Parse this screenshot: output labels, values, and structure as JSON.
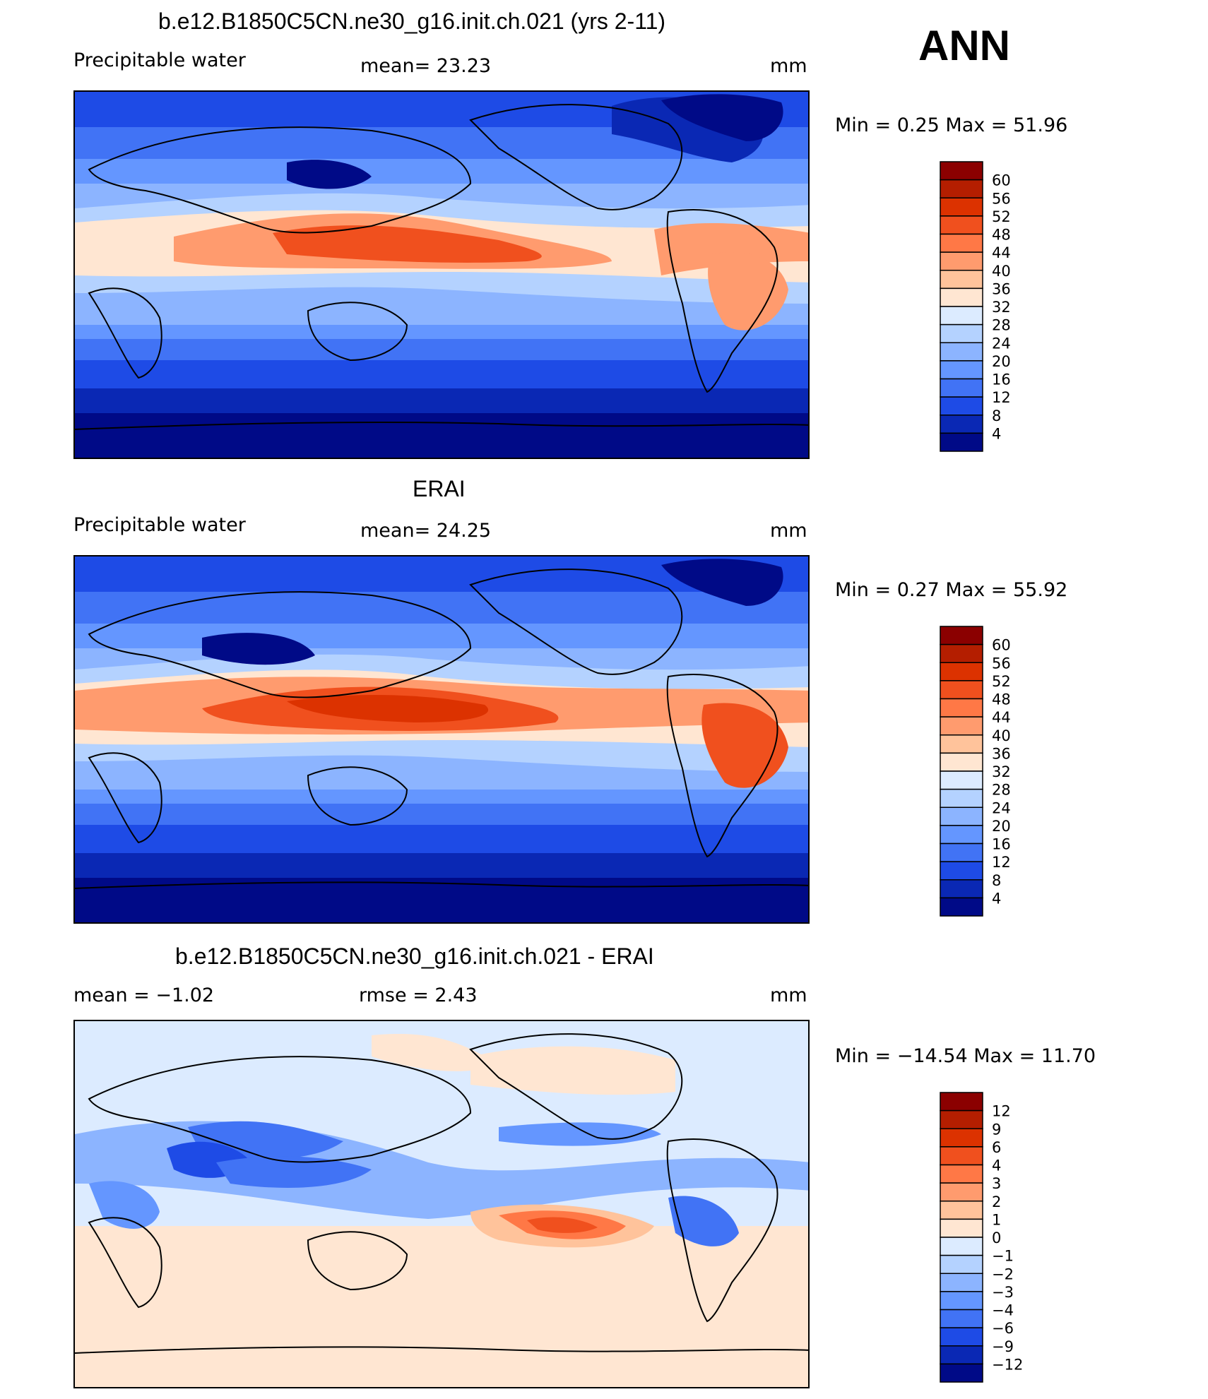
{
  "season": "ANN",
  "panels": [
    {
      "title": "b.e12.B1850C5CN.ne30_g16.init.ch.021 (yrs 2-11)",
      "left_label": "Precipitable  water",
      "center_label": "mean=   23.23",
      "units": "mm",
      "minmax": "Min  =     0.25  Max  =    51.96",
      "colorbar": {
        "labels": [
          "60",
          "56",
          "52",
          "48",
          "44",
          "40",
          "36",
          "32",
          "28",
          "24",
          "20",
          "16",
          "12",
          "8",
          "4"
        ],
        "colors": [
          "#8b0000",
          "#b41e00",
          "#dc3200",
          "#f0501e",
          "#ff7846",
          "#ff9b6e",
          "#ffc39b",
          "#ffe6d2",
          "#dcebff",
          "#b4d2ff",
          "#8cb4ff",
          "#6496ff",
          "#4173f5",
          "#1e4be6",
          "#0a28b4",
          "#000a87"
        ]
      }
    },
    {
      "title": "ERAI",
      "left_label": "Precipitable  water",
      "center_label": "mean=   24.25",
      "units": "mm",
      "minmax": "Min  =     0.27  Max  =    55.92",
      "colorbar": {
        "labels": [
          "60",
          "56",
          "52",
          "48",
          "44",
          "40",
          "36",
          "32",
          "28",
          "24",
          "20",
          "16",
          "12",
          "8",
          "4"
        ],
        "colors": [
          "#8b0000",
          "#b41e00",
          "#dc3200",
          "#f0501e",
          "#ff7846",
          "#ff9b6e",
          "#ffc39b",
          "#ffe6d2",
          "#dcebff",
          "#b4d2ff",
          "#8cb4ff",
          "#6496ff",
          "#4173f5",
          "#1e4be6",
          "#0a28b4",
          "#000a87"
        ]
      }
    },
    {
      "title": "b.e12.B1850C5CN.ne30_g16.init.ch.021 - ERAI",
      "left_label": "mean  =    −1.02",
      "center_label": "rmse  =     2.43",
      "units": "mm",
      "minmax": "Min  =  −14.54  Max  =    11.70",
      "colorbar": {
        "labels": [
          "12",
          "9",
          "6",
          "4",
          "3",
          "2",
          "1",
          "0",
          "−1",
          "−2",
          "−3",
          "−4",
          "−6",
          "−9",
          "−12"
        ],
        "colors": [
          "#8b0000",
          "#b41e00",
          "#dc3200",
          "#f0501e",
          "#ff7846",
          "#ff9b6e",
          "#ffc39b",
          "#ffe6d2",
          "#dcebff",
          "#b4d2ff",
          "#8cb4ff",
          "#6496ff",
          "#4173f5",
          "#1e4be6",
          "#0a28b4",
          "#000a87"
        ]
      }
    }
  ],
  "chart_data": [
    {
      "type": "heatmap",
      "title": "b.e12.B1850C5CN.ne30_g16.init.ch.021 (yrs 2-11)",
      "variable": "Precipitable water",
      "units": "mm",
      "mean": 23.23,
      "min": 0.25,
      "max": 51.96,
      "contour_levels": [
        4,
        8,
        12,
        16,
        20,
        24,
        28,
        32,
        36,
        40,
        44,
        48,
        52,
        56,
        60
      ],
      "x_range": [
        0,
        360
      ],
      "y_range": [
        -90,
        90
      ]
    },
    {
      "type": "heatmap",
      "title": "ERAI",
      "variable": "Precipitable water",
      "units": "mm",
      "mean": 24.25,
      "min": 0.27,
      "max": 55.92,
      "contour_levels": [
        4,
        8,
        12,
        16,
        20,
        24,
        28,
        32,
        36,
        40,
        44,
        48,
        52,
        56,
        60
      ],
      "x_range": [
        0,
        360
      ],
      "y_range": [
        -90,
        90
      ]
    },
    {
      "type": "heatmap",
      "title": "b.e12.B1850C5CN.ne30_g16.init.ch.021 - ERAI",
      "units": "mm",
      "mean": -1.02,
      "rmse": 2.43,
      "min": -14.54,
      "max": 11.7,
      "contour_levels": [
        -12,
        -9,
        -6,
        -4,
        -3,
        -2,
        -1,
        0,
        1,
        2,
        3,
        4,
        6,
        9,
        12
      ],
      "x_range": [
        0,
        360
      ],
      "y_range": [
        -90,
        90
      ]
    }
  ]
}
